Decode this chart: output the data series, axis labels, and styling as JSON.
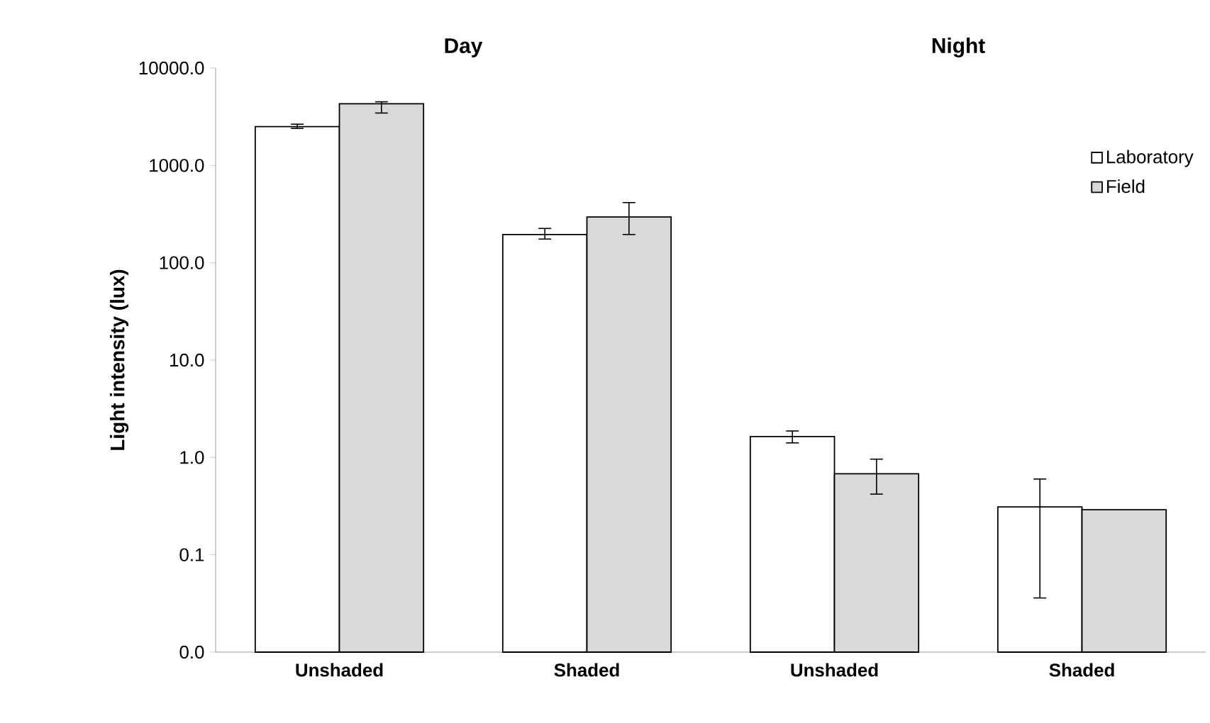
{
  "chart_data": {
    "type": "bar",
    "ylabel": "Light intensity (lux)",
    "annotations": [
      "Day",
      "Night"
    ],
    "categories": [
      "Unshaded",
      "Shaded",
      "Unshaded",
      "Shaded"
    ],
    "series": [
      {
        "name": "Laboratory",
        "color": "#ffffff",
        "values": [
          2500,
          195,
          1.64,
          0.31
        ],
        "errors": [
          [
            2400,
            2650
          ],
          [
            175,
            225
          ],
          [
            1.41,
            1.87
          ],
          [
            0.036,
            0.6
          ]
        ]
      },
      {
        "name": "Field",
        "color": "#d9d9d9",
        "values": [
          4300,
          295,
          0.68,
          0.29
        ],
        "errors": [
          [
            3450,
            4500
          ],
          [
            195,
            415
          ],
          [
            0.42,
            0.96
          ],
          null
        ]
      }
    ],
    "log": "y",
    "ylim": [
      0.01,
      10000
    ],
    "yticks": [
      {
        "value": 0.01,
        "label": "0.0"
      },
      {
        "value": 0.1,
        "label": "0.1"
      },
      {
        "value": 1,
        "label": "1.0"
      },
      {
        "value": 10,
        "label": "10.0"
      },
      {
        "value": 100,
        "label": "100.0"
      },
      {
        "value": 1000,
        "label": "1000.0"
      },
      {
        "value": 10000,
        "label": "10000.0"
      }
    ],
    "legend": "top right",
    "grid": false
  }
}
